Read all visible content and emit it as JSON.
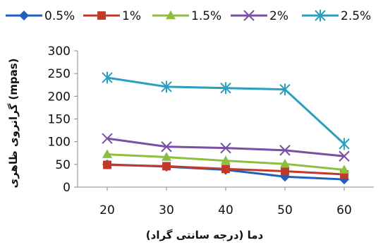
{
  "chart_data": {
    "type": "line",
    "title": "",
    "xlabel": "دما (درجه سانتی گراد)",
    "ylabel": "گرانروی ظاهری (mpas)",
    "x": [
      20,
      30,
      40,
      50,
      60
    ],
    "xlim": [
      15,
      65
    ],
    "ylim": [
      0,
      300
    ],
    "yticks": [
      0,
      50,
      100,
      150,
      200,
      250,
      300
    ],
    "grid": false,
    "legend_position": "top",
    "series": [
      {
        "name": "0.5%",
        "color": "#1f5fbf",
        "marker": "diamond",
        "values": [
          50,
          45,
          38,
          23,
          17
        ]
      },
      {
        "name": "1%",
        "color": "#c0392b",
        "marker": "square",
        "values": [
          49,
          46,
          40,
          35,
          28
        ]
      },
      {
        "name": "1.5%",
        "color": "#8cbf3f",
        "marker": "triangle",
        "values": [
          72,
          66,
          58,
          51,
          38
        ]
      },
      {
        "name": "2%",
        "color": "#7b4fa3",
        "marker": "x",
        "values": [
          107,
          89,
          86,
          81,
          68
        ]
      },
      {
        "name": "2.5%",
        "color": "#2b9fbe",
        "marker": "star",
        "values": [
          241,
          221,
          218,
          215,
          95
        ]
      }
    ]
  }
}
